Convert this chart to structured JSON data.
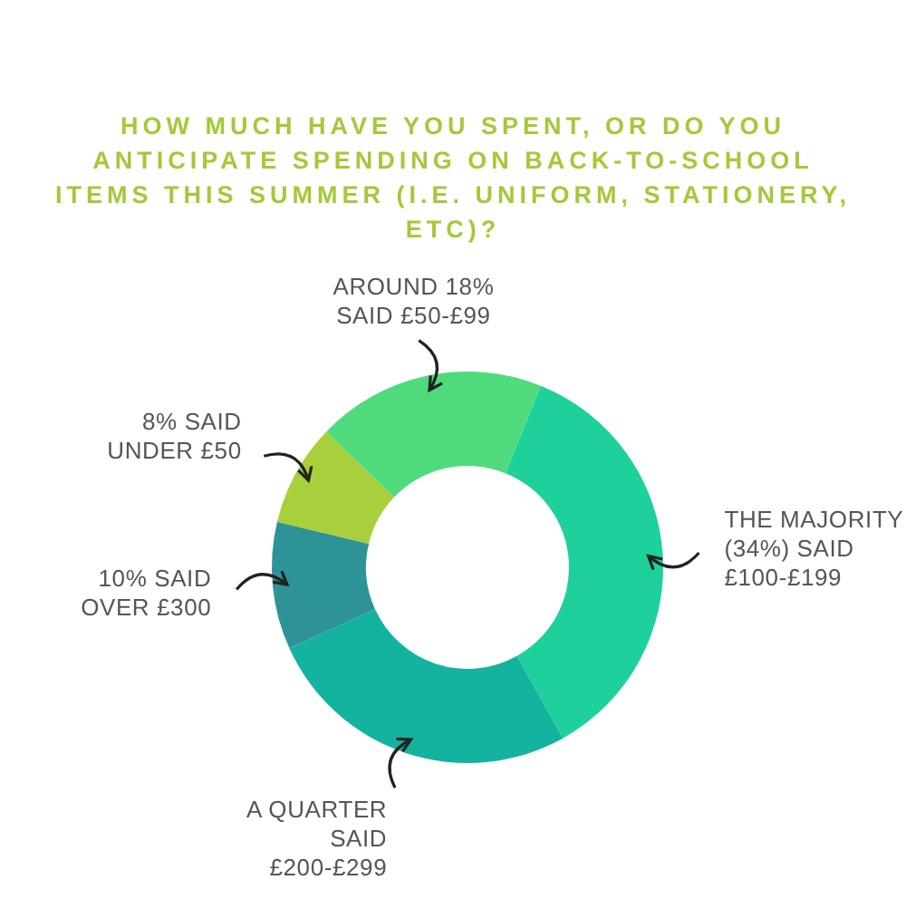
{
  "chart_data": {
    "type": "donut",
    "title": "HOW MUCH HAVE YOU SPENT, OR DO YOU ANTICIPATE SPENDING ON BACK-TO-SCHOOL ITEMS THIS SUMMER (I.E. UNIFORM, STATIONERY, ETC)?",
    "categories": [
      "THE MAJORITY (34%) SAID £100-£199",
      "A QUARTER SAID £200-£299",
      "10% SAID OVER £300",
      "8% SAID UNDER £50",
      "AROUND 18% SAID £50-£99"
    ],
    "values": [
      34,
      25,
      10,
      8,
      18
    ],
    "colors": [
      "#1ed19c",
      "#14b3a0",
      "#2e9396",
      "#a8cf3c",
      "#4fdb7c"
    ],
    "legend": false
  }
}
